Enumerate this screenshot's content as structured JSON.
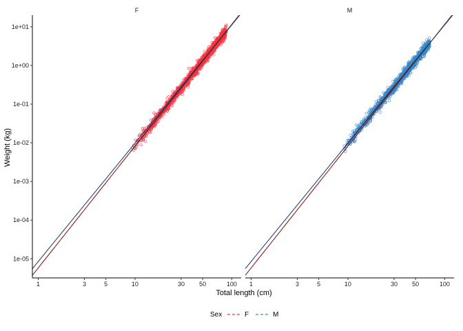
{
  "chart_data": {
    "type": "scatter",
    "title": "",
    "xlabel": "Total length (cm)",
    "ylabel": "Weight (kg)",
    "x_scale": "log10",
    "y_scale": "log10",
    "xlim": [
      0.87,
      125
    ],
    "ylim": [
      3.2e-06,
      20
    ],
    "x_ticks": [
      1,
      3,
      5,
      10,
      30,
      50,
      100
    ],
    "x_tick_labels": [
      "1",
      "3",
      "5",
      "10",
      "30",
      "50",
      "100"
    ],
    "y_ticks": [
      1e-05,
      0.0001,
      0.001,
      0.01,
      0.1,
      1,
      10
    ],
    "y_tick_labels": [
      "1e-05",
      "1e-04",
      "1e-03",
      "1e-02",
      "1e-01",
      "1e+00",
      "1e+01"
    ],
    "grid": false,
    "facets": [
      {
        "label": "F",
        "scatter": {
          "x_range_cm": [
            9,
            88
          ],
          "a": 5.8e-06,
          "b": 3.15,
          "spread_log10": 0.05,
          "n_points": 1400
        },
        "fits": [
          {
            "sex": "F",
            "a": 5.8e-06,
            "b": 3.15
          },
          {
            "sex": "M",
            "a": 8.5e-06,
            "b": 3.06
          }
        ]
      },
      {
        "label": "M",
        "scatter": {
          "x_range_cm": [
            9,
            70
          ],
          "a": 8.5e-06,
          "b": 3.06,
          "spread_log10": 0.05,
          "n_points": 1200
        },
        "fits": [
          {
            "sex": "F",
            "a": 5.8e-06,
            "b": 3.15
          },
          {
            "sex": "M",
            "a": 8.5e-06,
            "b": 3.06
          }
        ]
      }
    ],
    "legend": {
      "title": "Sex",
      "placement": "bottom",
      "entries": [
        {
          "label": "F",
          "color": "#F8333F"
        },
        {
          "label": "M",
          "color": "#3A86C8"
        }
      ]
    },
    "colors": {
      "F_points": "#F8333F",
      "M_points": "#3A86C8",
      "F_fit": "#8B1A1A",
      "M_fit": "#1F3F7A",
      "center_fit": "#2b2b2b"
    }
  }
}
